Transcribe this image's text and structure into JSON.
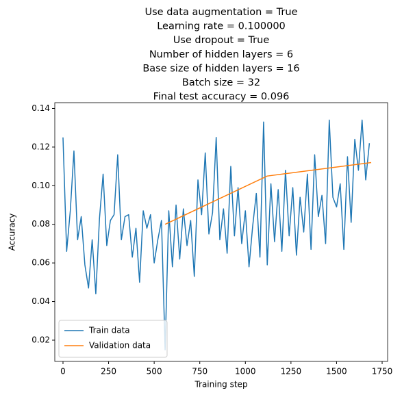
{
  "chart_data": {
    "type": "line",
    "title": [
      "Use data augmentation = True",
      "Learning rate = 0.100000",
      "Use dropout = True",
      "Number of hidden layers = 6",
      "Base size of hidden layers = 16",
      "Batch size = 32",
      "Final test accuracy = 0.096"
    ],
    "xlabel": "Training step",
    "ylabel": "Accuracy",
    "xlim": [
      -45,
      1780
    ],
    "ylim": [
      0.009,
      0.143
    ],
    "xticks": [
      0,
      250,
      500,
      750,
      1000,
      1250,
      1500,
      1750
    ],
    "yticks": [
      0.02,
      0.04,
      0.06,
      0.08,
      {
        "value": 0.1,
        "label": "0.10"
      },
      0.12,
      0.14
    ],
    "legend": "lower left",
    "series": [
      {
        "name": "Train data",
        "color": "#1f77b4",
        "x": [
          0,
          20,
          40,
          60,
          80,
          100,
          120,
          140,
          160,
          180,
          200,
          220,
          240,
          260,
          280,
          300,
          320,
          340,
          360,
          380,
          400,
          420,
          440,
          460,
          480,
          500,
          520,
          540,
          560,
          580,
          600,
          620,
          640,
          660,
          680,
          700,
          720,
          740,
          760,
          780,
          800,
          820,
          840,
          860,
          880,
          900,
          920,
          940,
          960,
          980,
          1000,
          1020,
          1040,
          1060,
          1080,
          1100,
          1120,
          1140,
          1160,
          1180,
          1200,
          1220,
          1240,
          1260,
          1280,
          1300,
          1320,
          1340,
          1360,
          1380,
          1400,
          1420,
          1440,
          1460,
          1480,
          1500,
          1520,
          1540,
          1560,
          1580,
          1600,
          1620,
          1640,
          1660,
          1680
        ],
        "values": [
          0.125,
          0.066,
          0.087,
          0.118,
          0.072,
          0.084,
          0.059,
          0.047,
          0.072,
          0.044,
          0.083,
          0.106,
          0.069,
          0.082,
          0.085,
          0.116,
          0.072,
          0.084,
          0.085,
          0.063,
          0.078,
          0.05,
          0.087,
          0.078,
          0.085,
          0.06,
          0.072,
          0.082,
          0.015,
          0.087,
          0.058,
          0.09,
          0.062,
          0.088,
          0.069,
          0.082,
          0.053,
          0.103,
          0.085,
          0.117,
          0.075,
          0.086,
          0.125,
          0.072,
          0.088,
          0.065,
          0.11,
          0.074,
          0.099,
          0.07,
          0.087,
          0.058,
          0.079,
          0.096,
          0.063,
          0.133,
          0.059,
          0.101,
          0.071,
          0.098,
          0.066,
          0.108,
          0.074,
          0.099,
          0.064,
          0.094,
          0.076,
          0.106,
          0.067,
          0.116,
          0.084,
          0.095,
          0.07,
          0.134,
          0.094,
          0.089,
          0.101,
          0.067,
          0.115,
          0.081,
          0.124,
          0.108,
          0.134,
          0.103,
          0.122
        ]
      },
      {
        "name": "Validation data",
        "color": "#ff7f0e",
        "x": [
          560,
          1120,
          1690
        ],
        "values": [
          0.08,
          0.105,
          0.112
        ]
      }
    ]
  }
}
